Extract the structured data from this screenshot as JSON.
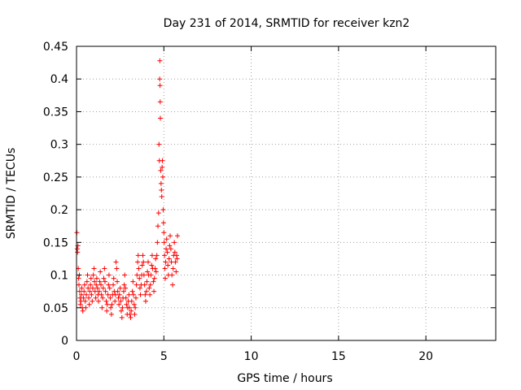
{
  "chart_data": {
    "type": "scatter",
    "title": "Day 231 of 2014, SRMTID for receiver kzn2",
    "xlabel": "GPS time / hours",
    "ylabel": "SRMTID / TECUs",
    "xlim": [
      0,
      24
    ],
    "ylim": [
      0,
      0.45
    ],
    "xticks": [
      0,
      5,
      10,
      15,
      20
    ],
    "xtick_labels": [
      "0",
      "5",
      "10",
      "15",
      "20"
    ],
    "yticks": [
      0,
      0.05,
      0.1,
      0.15,
      0.2,
      0.25,
      0.3,
      0.35,
      0.4,
      0.45
    ],
    "ytick_labels": [
      "0",
      "0.05",
      "0.1",
      "0.15",
      "0.2",
      "0.25",
      "0.3",
      "0.35",
      "0.4",
      "0.45"
    ],
    "grid": true,
    "marker": "+",
    "color": "#ff0000",
    "series": [
      {
        "name": "SRMTID",
        "points": [
          [
            0.02,
            0.165
          ],
          [
            0.04,
            0.14
          ],
          [
            0.06,
            0.135
          ],
          [
            0.08,
            0.145
          ],
          [
            0.1,
            0.11
          ],
          [
            0.12,
            0.095
          ],
          [
            0.14,
            0.085
          ],
          [
            0.16,
            0.1
          ],
          [
            0.18,
            0.075
          ],
          [
            0.2,
            0.065
          ],
          [
            0.22,
            0.055
          ],
          [
            0.25,
            0.06
          ],
          [
            0.28,
            0.07
          ],
          [
            0.3,
            0.08
          ],
          [
            0.33,
            0.05
          ],
          [
            0.36,
            0.045
          ],
          [
            0.4,
            0.065
          ],
          [
            0.43,
            0.075
          ],
          [
            0.46,
            0.085
          ],
          [
            0.5,
            0.06
          ],
          [
            0.53,
            0.05
          ],
          [
            0.56,
            0.07
          ],
          [
            0.6,
            0.09
          ],
          [
            0.63,
            0.1
          ],
          [
            0.66,
            0.08
          ],
          [
            0.7,
            0.065
          ],
          [
            0.73,
            0.055
          ],
          [
            0.76,
            0.075
          ],
          [
            0.8,
            0.085
          ],
          [
            0.83,
            0.095
          ],
          [
            0.86,
            0.07
          ],
          [
            0.9,
            0.06
          ],
          [
            0.93,
            0.08
          ],
          [
            0.96,
            0.1
          ],
          [
            1.0,
            0.11
          ],
          [
            1.03,
            0.09
          ],
          [
            1.06,
            0.075
          ],
          [
            1.1,
            0.065
          ],
          [
            1.13,
            0.085
          ],
          [
            1.16,
            0.095
          ],
          [
            1.2,
            0.08
          ],
          [
            1.23,
            0.07
          ],
          [
            1.26,
            0.06
          ],
          [
            1.3,
            0.075
          ],
          [
            1.33,
            0.09
          ],
          [
            1.36,
            0.105
          ],
          [
            1.4,
            0.085
          ],
          [
            1.43,
            0.07
          ],
          [
            1.46,
            0.05
          ],
          [
            1.5,
            0.065
          ],
          [
            1.53,
            0.08
          ],
          [
            1.56,
            0.095
          ],
          [
            1.6,
            0.11
          ],
          [
            1.63,
            0.09
          ],
          [
            1.66,
            0.075
          ],
          [
            1.7,
            0.06
          ],
          [
            1.73,
            0.045
          ],
          [
            1.76,
            0.055
          ],
          [
            1.8,
            0.07
          ],
          [
            1.83,
            0.085
          ],
          [
            1.86,
            0.1
          ],
          [
            1.9,
            0.08
          ],
          [
            1.93,
            0.065
          ],
          [
            1.96,
            0.05
          ],
          [
            2.0,
            0.04
          ],
          [
            2.03,
            0.055
          ],
          [
            2.06,
            0.07
          ],
          [
            2.1,
            0.085
          ],
          [
            2.13,
            0.095
          ],
          [
            2.16,
            0.075
          ],
          [
            2.2,
            0.06
          ],
          [
            2.23,
            0.07
          ],
          [
            2.26,
            0.12
          ],
          [
            2.3,
            0.11
          ],
          [
            2.33,
            0.09
          ],
          [
            2.36,
            0.075
          ],
          [
            2.4,
            0.065
          ],
          [
            2.43,
            0.055
          ],
          [
            2.46,
            0.07
          ],
          [
            2.5,
            0.08
          ],
          [
            2.53,
            0.06
          ],
          [
            2.56,
            0.045
          ],
          [
            2.6,
            0.035
          ],
          [
            2.63,
            0.05
          ],
          [
            2.66,
            0.065
          ],
          [
            2.7,
            0.075
          ],
          [
            2.73,
            0.085
          ],
          [
            2.76,
            0.1
          ],
          [
            2.8,
            0.08
          ],
          [
            2.83,
            0.065
          ],
          [
            2.86,
            0.055
          ],
          [
            2.9,
            0.04
          ],
          [
            2.93,
            0.05
          ],
          [
            2.96,
            0.06
          ],
          [
            3.0,
            0.07
          ],
          [
            3.03,
            0.05
          ],
          [
            3.06,
            0.04
          ],
          [
            3.1,
            0.035
          ],
          [
            3.13,
            0.045
          ],
          [
            3.16,
            0.06
          ],
          [
            3.2,
            0.075
          ],
          [
            3.23,
            0.09
          ],
          [
            3.26,
            0.07
          ],
          [
            3.3,
            0.055
          ],
          [
            3.33,
            0.04
          ],
          [
            3.36,
            0.05
          ],
          [
            3.4,
            0.065
          ],
          [
            3.43,
            0.085
          ],
          [
            3.46,
            0.1
          ],
          [
            3.5,
            0.12
          ],
          [
            3.53,
            0.13
          ],
          [
            3.56,
            0.11
          ],
          [
            3.6,
            0.095
          ],
          [
            3.63,
            0.08
          ],
          [
            3.66,
            0.07
          ],
          [
            3.7,
            0.085
          ],
          [
            3.73,
            0.1
          ],
          [
            3.76,
            0.115
          ],
          [
            3.8,
            0.13
          ],
          [
            3.83,
            0.12
          ],
          [
            3.86,
            0.1
          ],
          [
            3.9,
            0.085
          ],
          [
            3.93,
            0.07
          ],
          [
            3.96,
            0.06
          ],
          [
            4.0,
            0.075
          ],
          [
            4.03,
            0.09
          ],
          [
            4.06,
            0.105
          ],
          [
            4.1,
            0.12
          ],
          [
            4.13,
            0.1
          ],
          [
            4.16,
            0.08
          ],
          [
            4.2,
            0.07
          ],
          [
            4.23,
            0.085
          ],
          [
            4.26,
            0.1
          ],
          [
            4.3,
            0.115
          ],
          [
            4.33,
            0.13
          ],
          [
            4.36,
            0.11
          ],
          [
            4.4,
            0.09
          ],
          [
            4.43,
            0.075
          ],
          [
            4.46,
            0.095
          ],
          [
            4.5,
            0.11
          ],
          [
            4.53,
            0.125
          ],
          [
            4.56,
            0.105
          ],
          [
            4.6,
            0.13
          ],
          [
            4.63,
            0.15
          ],
          [
            4.66,
            0.175
          ],
          [
            4.7,
            0.195
          ],
          [
            4.72,
            0.3
          ],
          [
            4.74,
            0.275
          ],
          [
            4.76,
            0.4
          ],
          [
            4.77,
            0.428
          ],
          [
            4.78,
            0.39
          ],
          [
            4.79,
            0.365
          ],
          [
            4.8,
            0.34
          ],
          [
            4.82,
            0.26
          ],
          [
            4.84,
            0.24
          ],
          [
            4.86,
            0.23
          ],
          [
            4.88,
            0.22
          ],
          [
            4.9,
            0.265
          ],
          [
            4.92,
            0.275
          ],
          [
            4.94,
            0.25
          ],
          [
            4.96,
            0.2
          ],
          [
            4.98,
            0.18
          ],
          [
            5.0,
            0.165
          ],
          [
            5.02,
            0.15
          ],
          [
            5.04,
            0.13
          ],
          [
            5.06,
            0.11
          ],
          [
            5.08,
            0.095
          ],
          [
            5.1,
            0.12
          ],
          [
            5.13,
            0.14
          ],
          [
            5.16,
            0.155
          ],
          [
            5.2,
            0.135
          ],
          [
            5.23,
            0.115
          ],
          [
            5.26,
            0.1
          ],
          [
            5.3,
            0.125
          ],
          [
            5.33,
            0.145
          ],
          [
            5.36,
            0.16
          ],
          [
            5.4,
            0.14
          ],
          [
            5.43,
            0.12
          ],
          [
            5.46,
            0.1
          ],
          [
            5.5,
            0.085
          ],
          [
            5.53,
            0.11
          ],
          [
            5.56,
            0.13
          ],
          [
            5.6,
            0.15
          ],
          [
            5.63,
            0.135
          ],
          [
            5.66,
            0.12
          ],
          [
            5.7,
            0.105
          ],
          [
            5.73,
            0.13
          ],
          [
            5.76,
            0.125
          ],
          [
            5.78,
            0.16
          ]
        ]
      }
    ]
  }
}
